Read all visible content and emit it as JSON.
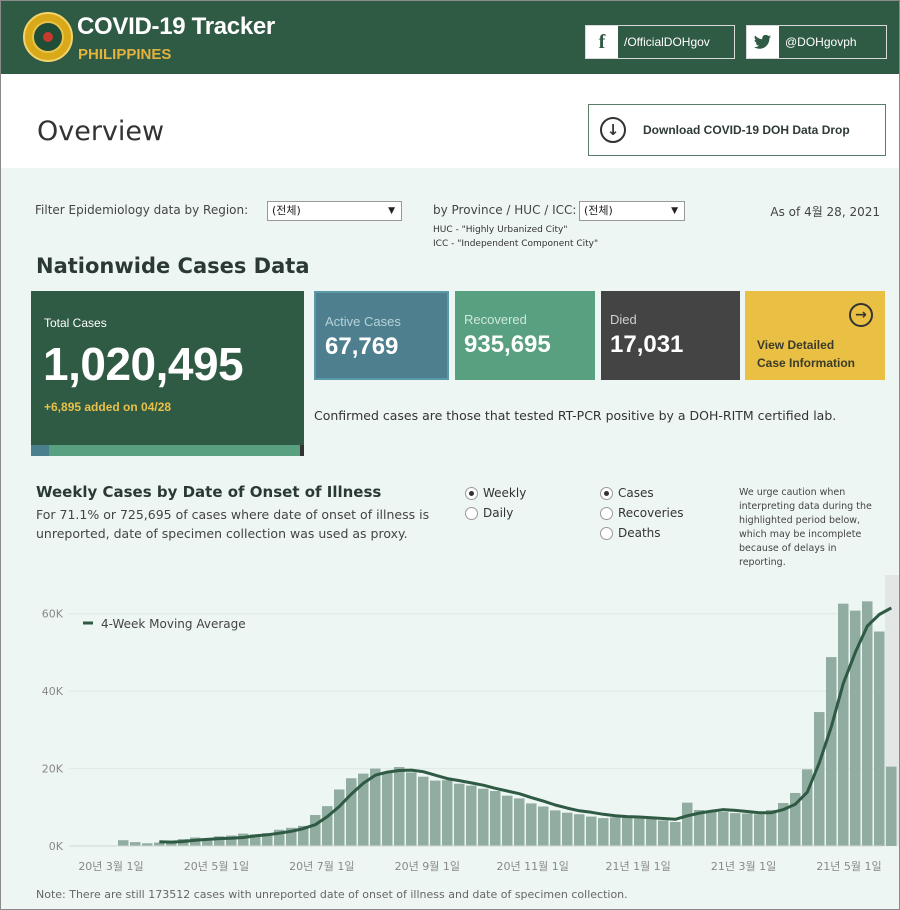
{
  "header": {
    "title": "COVID-19 Tracker",
    "subtitle": "PHILIPPINES",
    "facebook_label": "/OfficialDOHgov",
    "twitter_label": "@DOHgovph",
    "brand_color": "#2f5a44",
    "accent_color": "#e3b33d",
    "icons": [
      "doh-seal-logo",
      "facebook-icon",
      "twitter-icon"
    ]
  },
  "overview": {
    "title": "Overview",
    "download_label": "Download COVID-19 DOH Data Drop",
    "download_icon": "download-circle-icon"
  },
  "filters": {
    "region_label": "Filter Epidemiology data by Region:",
    "region_value": "(전체)",
    "province_label": "by Province / HUC / ICC:",
    "province_value": "(전체)",
    "huc_note": "HUC - \"Highly Urbanized City\"",
    "icc_note": "ICC - \"Independent Component City\"",
    "as_of": "As of 4월 28, 2021"
  },
  "nationwide": {
    "heading": "Nationwide Cases Data",
    "total_label": "Total Cases",
    "total_value": "1,020,495",
    "added": "+6,895 added on 04/28",
    "active_label": "Active Cases",
    "active_value": "67,769",
    "recovered_label": "Recovered",
    "recovered_value": "935,695",
    "died_label": "Died",
    "died_value": "17,031",
    "detail_line1": "View Detailed",
    "detail_line2": "Case Information",
    "confirmed_note": "Confirmed cases are those that tested RT-PCR positive by a DOH-RITM certified lab.",
    "colors": {
      "total": "#2f5a44",
      "active": "#4e7f8e",
      "recovered": "#58a07f",
      "died": "#444444",
      "detail": "#eac044"
    }
  },
  "weekly": {
    "title": "Weekly Cases by Date of Onset of Illness",
    "desc": "For 71.1% or 725,695 of cases where date of onset of illness is unreported, date of specimen collection was used as proxy.",
    "period_options": [
      {
        "label": "Weekly",
        "selected": true
      },
      {
        "label": "Daily",
        "selected": false
      }
    ],
    "metric_options": [
      {
        "label": "Cases",
        "selected": true
      },
      {
        "label": "Recoveries",
        "selected": false
      },
      {
        "label": "Deaths",
        "selected": false
      }
    ],
    "caution": "We urge caution when interpreting data during the highlighted period below, which may be incomplete because of delays in reporting.",
    "footnote": "Note: There are still 173512 cases with unreported date of onset of illness and date of specimen collection."
  },
  "chart_data": {
    "type": "bar",
    "title": "",
    "xlabel": "",
    "ylabel": "",
    "ylim": [
      0,
      70000
    ],
    "y_ticks": [
      "0K",
      "20K",
      "40K",
      "60K"
    ],
    "x_ticks": [
      "20년 3월 1일",
      "20년 5월 1일",
      "20년 7월 1일",
      "20년 9월 1일",
      "20년 11월 1일",
      "21년 1월 1일",
      "21년 3월 1일",
      "21년 5월 1일"
    ],
    "legend": "4-Week Moving Average",
    "grid": true,
    "highlight_last_weeks": 1,
    "series": [
      {
        "name": "",
        "values": [
          1500,
          1000,
          700,
          900,
          1300,
          1800,
          2200,
          1700,
          2500,
          2700,
          3200,
          3000,
          3300,
          4200,
          4700,
          5200,
          8000,
          10300,
          14600,
          17500,
          18700,
          20000,
          19000,
          20400,
          19000,
          17900,
          16900,
          17000,
          16100,
          15600,
          14800,
          14200,
          13000,
          12300,
          11000,
          10200,
          9200,
          8600,
          8200,
          7600,
          7200,
          7400,
          7700,
          7100,
          7000,
          6600,
          6200,
          11200,
          9300,
          9200,
          8800,
          8500,
          8400,
          8200,
          9300,
          11100,
          13700,
          19800,
          34600,
          48800,
          62600,
          60800,
          63200,
          55400,
          20500
        ]
      },
      {
        "name": "4-Week Moving Average",
        "values": [
          null,
          null,
          null,
          1100,
          1000,
          1150,
          1500,
          1700,
          1900,
          2000,
          2200,
          2600,
          2900,
          3300,
          3800,
          4500,
          5500,
          7600,
          10200,
          13400,
          16200,
          18300,
          19100,
          19500,
          19600,
          19200,
          18300,
          17400,
          16900,
          16300,
          15700,
          14900,
          14200,
          13500,
          12500,
          11600,
          10600,
          9800,
          9100,
          8700,
          8200,
          7800,
          7600,
          7500,
          7300,
          7100,
          6900,
          7800,
          8500,
          9000,
          9400,
          9200,
          8900,
          8600,
          8600,
          9400,
          10800,
          13900,
          21500,
          30800,
          42000,
          50000,
          56800,
          59800,
          61500
        ]
      }
    ]
  }
}
